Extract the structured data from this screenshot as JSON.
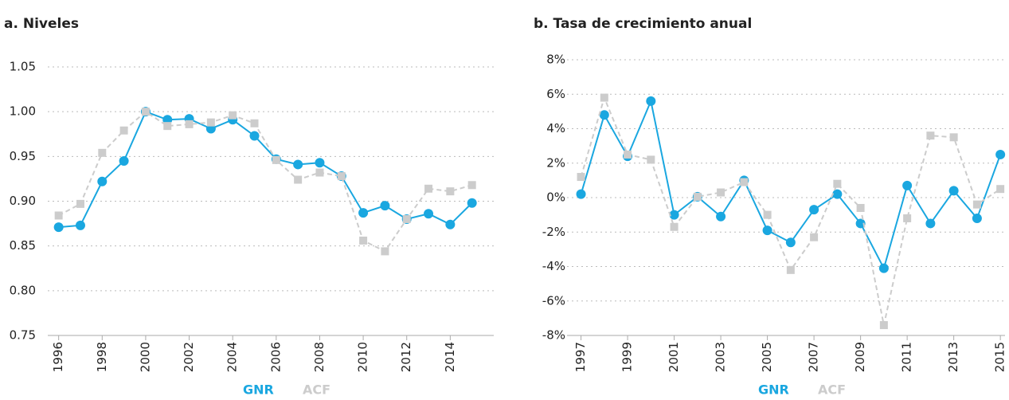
{
  "chart_data": [
    {
      "type": "line",
      "title": "a. Niveles",
      "x": [
        1996,
        1997,
        1998,
        1999,
        2000,
        2001,
        2002,
        2003,
        2004,
        2005,
        2006,
        2007,
        2008,
        2009,
        2010,
        2011,
        2012,
        2013,
        2014,
        2015
      ],
      "xlim": [
        1995.5,
        2016
      ],
      "xticks": [
        1996,
        1998,
        2000,
        2002,
        2004,
        2006,
        2008,
        2010,
        2012,
        2014
      ],
      "ylim": [
        0.75,
        1.05
      ],
      "yticks": [
        0.75,
        {
          "value": 0.8,
          "label": "0.80"
        },
        0.85,
        {
          "value": 0.9,
          "label": "0.90"
        },
        0.95,
        {
          "value": 1.0,
          "label": "1.00"
        },
        1.05
      ],
      "grid": true,
      "legend": "bottom",
      "series": [
        {
          "name": "GNR",
          "color": "#1aa7e0",
          "values": [
            0.871,
            0.873,
            0.922,
            0.945,
            1.0,
            0.991,
            0.992,
            0.981,
            0.991,
            0.973,
            0.947,
            0.941,
            0.943,
            0.928,
            0.887,
            0.895,
            0.88,
            0.886,
            0.874,
            0.898
          ]
        },
        {
          "name": "ACF",
          "color": "#cccccc",
          "values": [
            0.884,
            0.897,
            0.954,
            0.979,
            1.0,
            0.984,
            0.986,
            0.988,
            0.996,
            0.987,
            0.946,
            0.924,
            0.932,
            0.928,
            0.856,
            0.844,
            0.88,
            0.914,
            0.911,
            0.918
          ]
        }
      ]
    },
    {
      "type": "line",
      "title": "b. Tasa de crecimiento anual",
      "x": [
        1997,
        1998,
        1999,
        2000,
        2001,
        2002,
        2003,
        2004,
        2005,
        2006,
        2007,
        2008,
        2009,
        2010,
        2011,
        2012,
        2013,
        2014,
        2015
      ],
      "xlim": [
        1996.4,
        2015.2
      ],
      "xticks": [
        1997,
        1999,
        2001,
        2003,
        2005,
        2007,
        2009,
        2011,
        2013,
        2015
      ],
      "ylim": [
        -8,
        8
      ],
      "yticks": [
        {
          "value": -8,
          "label": "-8%"
        },
        {
          "value": -6,
          "label": "-6%"
        },
        {
          "value": -4,
          "label": "-4%"
        },
        {
          "value": -2,
          "label": "-2%"
        },
        {
          "value": 0,
          "label": "0%"
        },
        {
          "value": 2,
          "label": "2%"
        },
        {
          "value": 4,
          "label": "4%"
        },
        {
          "value": 6,
          "label": "6%"
        },
        {
          "value": 8,
          "label": "8%"
        }
      ],
      "grid": true,
      "legend": "bottom",
      "series": [
        {
          "name": "GNR",
          "color": "#1aa7e0",
          "values": [
            0.2,
            4.8,
            2.4,
            5.6,
            -1.0,
            0.05,
            -1.1,
            1.0,
            -1.9,
            -2.6,
            -0.7,
            0.2,
            -1.5,
            -4.1,
            0.7,
            -1.5,
            0.4,
            -1.2,
            2.5
          ]
        },
        {
          "name": "ACF",
          "color": "#cccccc",
          "values": [
            1.2,
            5.8,
            2.5,
            2.2,
            -1.7,
            0.05,
            0.3,
            0.9,
            -1.0,
            -4.2,
            -2.3,
            0.8,
            -0.6,
            -7.4,
            -1.2,
            3.6,
            3.5,
            -0.4,
            0.5
          ]
        }
      ]
    }
  ]
}
